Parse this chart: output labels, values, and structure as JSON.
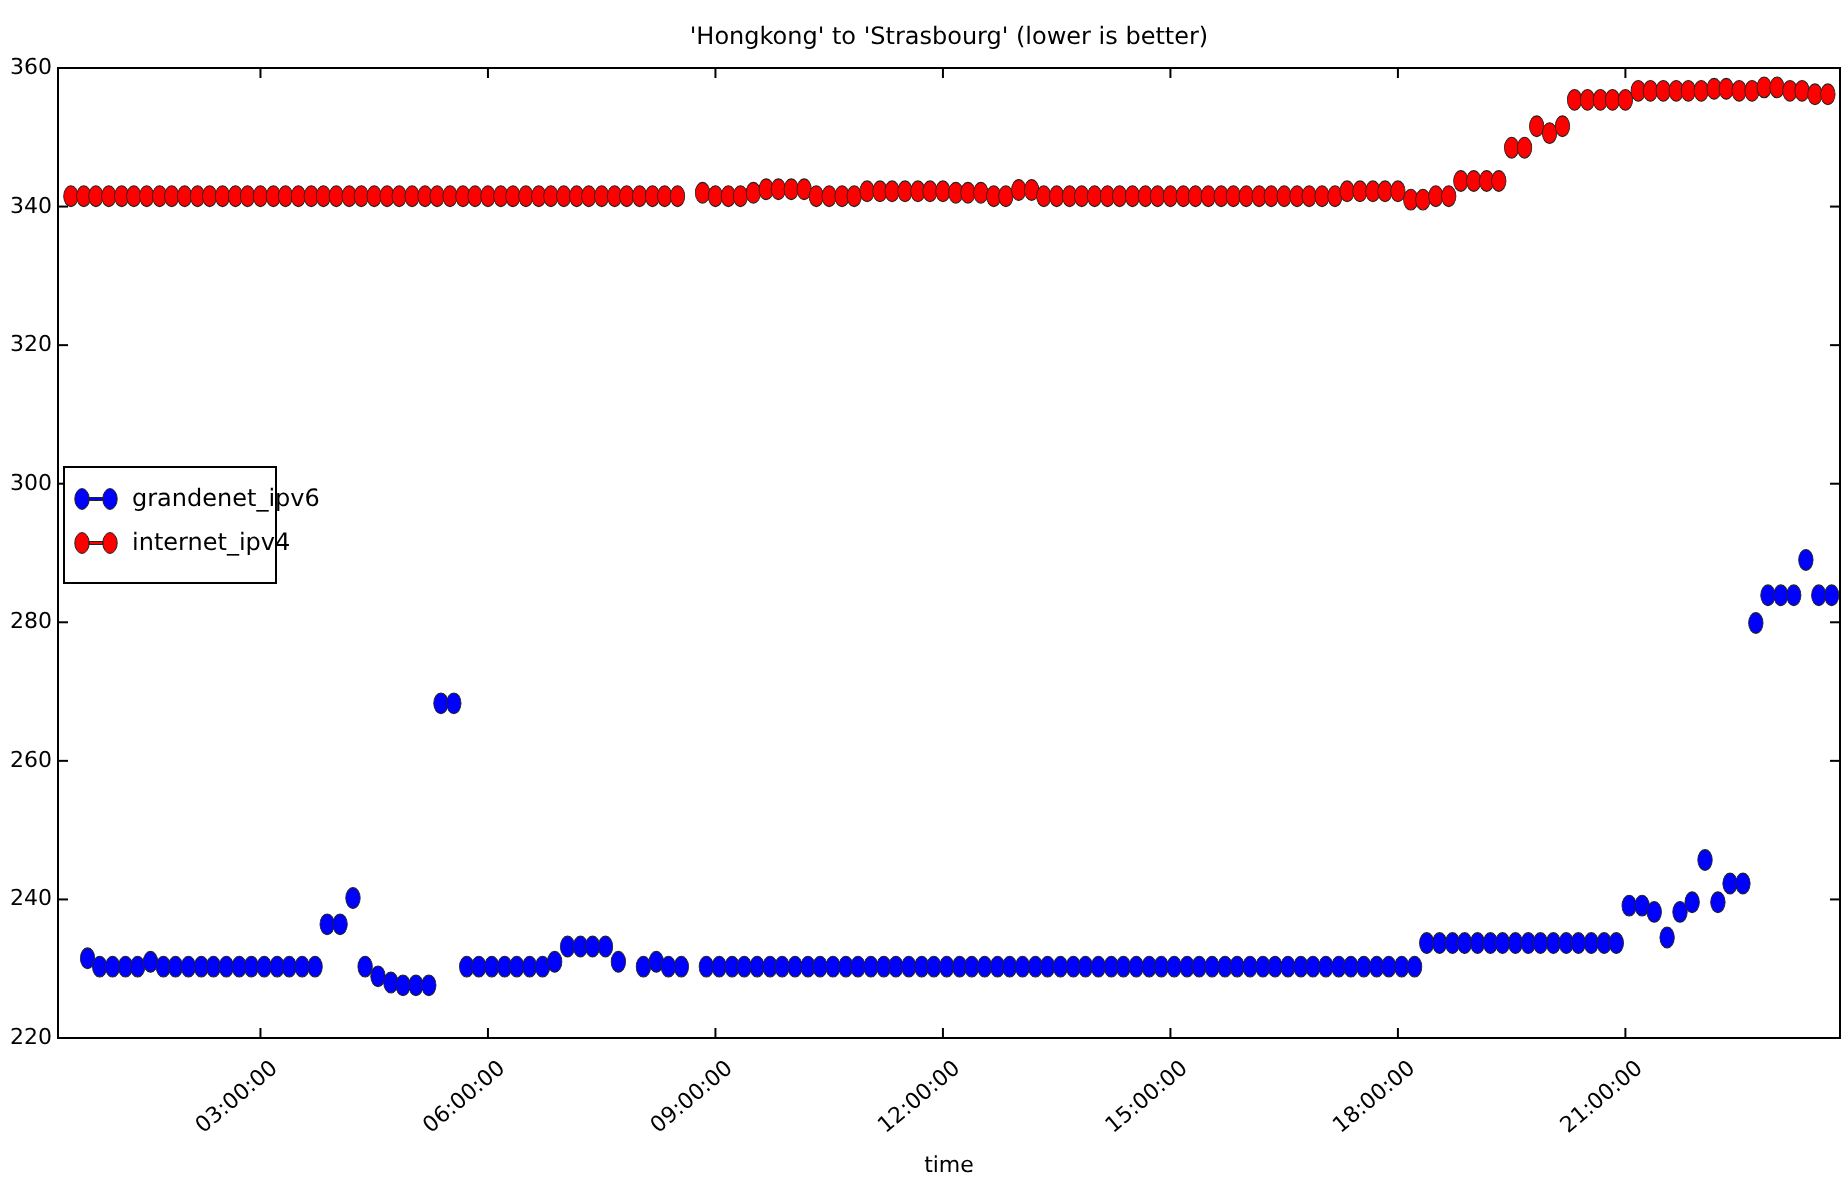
{
  "chart_data": {
    "type": "scatter",
    "title": "'Hongkong' to 'Strasbourg' (lower is better)",
    "xlabel": "time",
    "xlim": [
      0.33,
      23.83
    ],
    "xticks": [
      {
        "value": 3,
        "label": "03:00:00"
      },
      {
        "value": 6,
        "label": "06:00:00"
      },
      {
        "value": 9,
        "label": "09:00:00"
      },
      {
        "value": 12,
        "label": "12:00:00"
      },
      {
        "value": 15,
        "label": "15:00:00"
      },
      {
        "value": 18,
        "label": "18:00:00"
      },
      {
        "value": 21,
        "label": "21:00:00"
      }
    ],
    "ylim": [
      220,
      360
    ],
    "yticks": [
      220,
      240,
      260,
      280,
      300,
      320,
      340,
      360
    ],
    "grid": false,
    "legend": "left",
    "marker": "circle",
    "series": [
      {
        "name": "grandenet_ipv6",
        "color": "#0000ff",
        "x": [
          0.72,
          0.88,
          1.05,
          1.22,
          1.38,
          1.55,
          1.72,
          1.88,
          2.05,
          2.22,
          2.38,
          2.55,
          2.72,
          2.88,
          3.05,
          3.22,
          3.38,
          3.55,
          3.72,
          3.88,
          4.05,
          4.22,
          4.38,
          4.55,
          4.72,
          4.88,
          5.05,
          5.22,
          5.38,
          5.55,
          5.72,
          5.88,
          6.05,
          6.22,
          6.38,
          6.55,
          6.72,
          6.88,
          7.05,
          7.22,
          7.38,
          7.55,
          7.72,
          7.88,
          8.05,
          8.22,
          8.38,
          8.55,
          8.72,
          8.88,
          9.05,
          9.22,
          9.38,
          9.55,
          9.72,
          9.88,
          10.05,
          10.22,
          10.38,
          10.55,
          10.72,
          10.88,
          11.05,
          11.22,
          11.38,
          11.55,
          11.72,
          11.88,
          12.05,
          12.22,
          12.38,
          12.55,
          12.72,
          12.88,
          13.05,
          13.22,
          13.38,
          13.55,
          13.72,
          13.88,
          14.05,
          14.22,
          14.38,
          14.55,
          14.72,
          14.88,
          15.05,
          15.22,
          15.38,
          15.55,
          15.72,
          15.88,
          16.05,
          16.22,
          16.38,
          16.55,
          16.72,
          16.88,
          17.05,
          17.22,
          17.38,
          17.55,
          17.72,
          17.88,
          18.05,
          18.22,
          18.38,
          18.55,
          18.72,
          18.88,
          19.05,
          19.22,
          19.38,
          19.55,
          19.72,
          19.88,
          20.05,
          20.22,
          20.38,
          20.55,
          20.72,
          20.88,
          21.05,
          21.22,
          21.38,
          21.55,
          21.72,
          21.88,
          22.05,
          22.22,
          22.38,
          22.55,
          22.72,
          22.88,
          23.05,
          23.22,
          23.38,
          23.55,
          23.72
        ],
        "values": [
          231.5,
          230.3,
          230.3,
          230.3,
          230.3,
          231,
          230.3,
          230.3,
          230.3,
          230.3,
          230.3,
          230.3,
          230.3,
          230.3,
          230.3,
          230.3,
          230.3,
          230.3,
          230.3,
          236.4,
          236.4,
          240.2,
          230.3,
          228.9,
          228,
          227.6,
          227.6,
          227.6,
          268.3,
          268.3,
          230.3,
          230.3,
          230.3,
          230.3,
          230.3,
          230.3,
          230.3,
          231,
          233.2,
          233.2,
          233.2,
          233.2,
          231,
          null,
          230.3,
          231,
          230.3,
          230.3,
          null,
          230.3,
          230.3,
          230.3,
          230.3,
          230.3,
          230.3,
          230.3,
          230.3,
          230.3,
          230.3,
          230.3,
          230.3,
          230.3,
          230.3,
          230.3,
          230.3,
          230.3,
          230.3,
          230.3,
          230.3,
          230.3,
          230.3,
          230.3,
          230.3,
          230.3,
          230.3,
          230.3,
          230.3,
          230.3,
          230.3,
          230.3,
          230.3,
          230.3,
          230.3,
          230.3,
          230.3,
          230.3,
          230.3,
          230.3,
          230.3,
          230.3,
          230.3,
          230.3,
          230.3,
          230.3,
          230.3,
          230.3,
          230.3,
          230.3,
          230.3,
          230.3,
          230.3,
          230.3,
          230.3,
          230.3,
          230.3,
          230.3,
          233.7,
          233.7,
          233.7,
          233.7,
          233.7,
          233.7,
          233.7,
          233.7,
          233.7,
          233.7,
          233.7,
          233.7,
          233.7,
          233.7,
          233.7,
          233.7,
          239.1,
          239.1,
          238.2,
          234.5,
          238.2,
          239.6,
          245.7,
          239.6,
          242.3,
          242.3,
          279.9,
          283.9,
          283.9,
          283.9,
          289,
          283.9,
          283.9
        ]
      },
      {
        "name": "internet_ipv4",
        "color": "#ff0000",
        "x": [
          0.5,
          0.67,
          0.83,
          1,
          1.17,
          1.33,
          1.5,
          1.67,
          1.83,
          2,
          2.17,
          2.33,
          2.5,
          2.67,
          2.83,
          3,
          3.17,
          3.33,
          3.5,
          3.67,
          3.83,
          4,
          4.17,
          4.33,
          4.5,
          4.67,
          4.83,
          5,
          5.17,
          5.33,
          5.5,
          5.67,
          5.83,
          6,
          6.17,
          6.33,
          6.5,
          6.67,
          6.83,
          7,
          7.17,
          7.33,
          7.5,
          7.67,
          7.83,
          8,
          8.17,
          8.33,
          8.5,
          8.67,
          8.83,
          9,
          9.17,
          9.33,
          9.5,
          9.67,
          9.83,
          10,
          10.17,
          10.33,
          10.5,
          10.67,
          10.83,
          11,
          11.17,
          11.33,
          11.5,
          11.67,
          11.83,
          12,
          12.17,
          12.33,
          12.5,
          12.67,
          12.83,
          13,
          13.17,
          13.33,
          13.5,
          13.67,
          13.83,
          14,
          14.17,
          14.33,
          14.5,
          14.67,
          14.83,
          15,
          15.17,
          15.33,
          15.5,
          15.67,
          15.83,
          16,
          16.17,
          16.33,
          16.5,
          16.67,
          16.83,
          17,
          17.17,
          17.33,
          17.5,
          17.67,
          17.83,
          18,
          18.17,
          18.33,
          18.5,
          18.67,
          18.83,
          19,
          19.17,
          19.33,
          19.5,
          19.67,
          19.83,
          20,
          20.17,
          20.33,
          20.5,
          20.67,
          20.83,
          21,
          21.17,
          21.33,
          21.5,
          21.67,
          21.83,
          22,
          22.17,
          22.33,
          22.5,
          22.67,
          22.83,
          23,
          23.17,
          23.33,
          23.5,
          23.67
        ],
        "values": [
          341.5,
          341.5,
          341.5,
          341.5,
          341.5,
          341.5,
          341.5,
          341.5,
          341.5,
          341.5,
          341.5,
          341.5,
          341.5,
          341.5,
          341.5,
          341.5,
          341.5,
          341.5,
          341.5,
          341.5,
          341.5,
          341.5,
          341.5,
          341.5,
          341.5,
          341.5,
          341.5,
          341.5,
          341.5,
          341.5,
          341.5,
          341.5,
          341.5,
          341.5,
          341.5,
          341.5,
          341.5,
          341.5,
          341.5,
          341.5,
          341.5,
          341.5,
          341.5,
          341.5,
          341.5,
          341.5,
          341.5,
          341.5,
          341.5,
          null,
          342,
          341.5,
          341.5,
          341.5,
          342,
          342.5,
          342.5,
          342.5,
          342.5,
          341.5,
          341.5,
          341.5,
          341.5,
          342.2,
          342.2,
          342.2,
          342.2,
          342.2,
          342.2,
          342.2,
          342,
          342,
          342,
          341.5,
          341.5,
          342.4,
          342.4,
          341.5,
          341.5,
          341.5,
          341.5,
          341.5,
          341.5,
          341.5,
          341.5,
          341.5,
          341.5,
          341.5,
          341.5,
          341.5,
          341.5,
          341.5,
          341.5,
          341.5,
          341.5,
          341.5,
          341.5,
          341.5,
          341.5,
          341.5,
          341.5,
          342.2,
          342.2,
          342.2,
          342.2,
          342.2,
          341,
          341,
          341.5,
          341.5,
          343.7,
          343.7,
          343.7,
          343.7,
          348.5,
          348.5,
          351.6,
          350.6,
          351.6,
          355.4,
          355.4,
          355.4,
          355.4,
          355.4,
          356.7,
          356.7,
          356.7,
          356.7,
          356.7,
          356.7,
          357,
          357,
          356.7,
          356.7,
          357.2,
          357.2,
          356.7,
          356.7,
          356.2,
          356.2
        ]
      }
    ]
  }
}
